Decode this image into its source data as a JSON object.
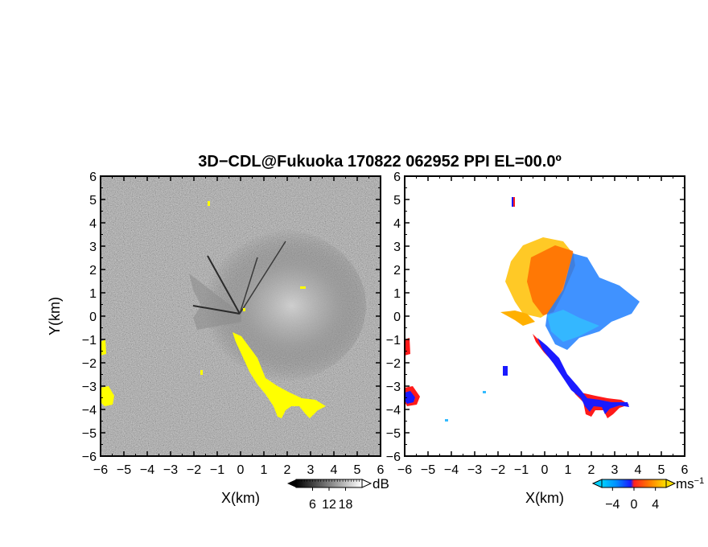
{
  "chart_data": {
    "type": "heatmap",
    "title": "3D−CDL@Fukuoka 170822 062952 PPI EL=00.0º",
    "panels": [
      {
        "name": "reflectivity",
        "xlabel": "X(km)",
        "ylabel": "Y(km)",
        "xlim": [
          -6,
          6
        ],
        "ylim": [
          -6,
          6
        ],
        "x_ticks": [
          "−6",
          "−5",
          "−4",
          "−3",
          "−2",
          "−1",
          "0",
          "1",
          "2",
          "3",
          "4",
          "5",
          "6"
        ],
        "y_ticks": [
          "6",
          "5",
          "4",
          "3",
          "2",
          "1",
          "0",
          "−1",
          "−2",
          "−3",
          "−4",
          "−5",
          "−6"
        ],
        "colorbar": {
          "unit": "dB",
          "range": [
            0,
            24
          ],
          "tick_values": [
            6,
            12,
            18
          ],
          "tick_labels": [
            "6",
            "12",
            "18"
          ],
          "colors": [
            "#000000",
            "#ffffff"
          ]
        },
        "highlight_color": "#ffff00"
      },
      {
        "name": "velocity",
        "xlabel": "X(km)",
        "ylabel": "",
        "xlim": [
          -6,
          6
        ],
        "ylim": [
          -6,
          6
        ],
        "x_ticks": [
          "−6",
          "−5",
          "−4",
          "−3",
          "−2",
          "−1",
          "0",
          "1",
          "2",
          "3",
          "4",
          "5",
          "6"
        ],
        "y_ticks": [
          "6",
          "5",
          "4",
          "3",
          "2",
          "1",
          "0",
          "−1",
          "−2",
          "−3",
          "−4",
          "−5",
          "−6"
        ],
        "colorbar": {
          "unit": "ms",
          "unit_exponent": "−1",
          "range": [
            -6,
            6
          ],
          "tick_values": [
            -4,
            0,
            4
          ],
          "tick_labels": [
            "−4",
            "0",
            "4"
          ],
          "colors": [
            "#00bfff",
            "#0055ff",
            "#1a1aff",
            "#ff2a00",
            "#ff8000",
            "#ffd000"
          ]
        },
        "colors": {
          "positive": "#ff6a00",
          "positive_far": "#ffc000",
          "negative": "#1f7fff",
          "negative_near": "#33bbff",
          "edge_red": "#ff1a1a",
          "edge_blue": "#1a1aff"
        }
      }
    ]
  }
}
